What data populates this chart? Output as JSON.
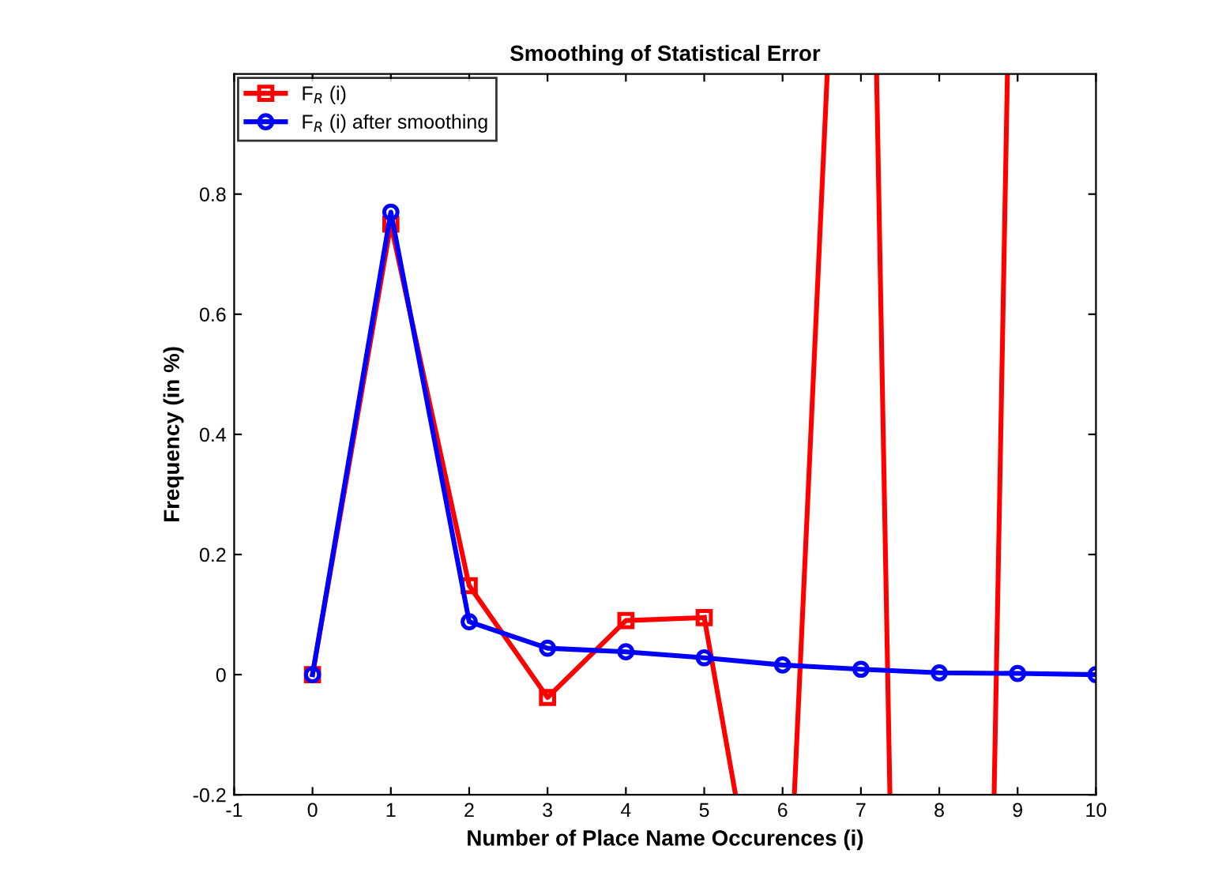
{
  "chart_data": {
    "type": "line",
    "title": "Smoothing of Statistical Error",
    "xlabel": "Number of Place Name Occurences (i)",
    "ylabel": "Frequency (in %)",
    "xlim": [
      -1,
      10
    ],
    "xticks": [
      -1,
      0,
      1,
      2,
      3,
      4,
      5,
      6,
      7,
      8,
      9,
      10
    ],
    "ylim": [
      -0.2,
      1.0
    ],
    "yticks": [
      -0.2,
      0,
      0.2,
      0.4,
      0.6,
      0.8
    ],
    "legend": "top left",
    "grid": false,
    "line_style": "solid",
    "series": [
      {
        "name": "F$_{R}$ (i)",
        "color": "#ff0000",
        "marker": "square",
        "x": [
          0,
          1,
          2,
          3,
          4,
          5
        ],
        "values": [
          0,
          0.75,
          0.148,
          -0.038,
          0.09,
          0.095
        ]
      },
      {
        "color": "#ff0000",
        "marker": "none",
        "x": [
          5,
          5.4,
          null,
          6.15,
          6.57,
          null,
          7.2,
          7.37,
          null,
          8.7,
          8.87
        ],
        "values": [
          0.095,
          -0.2,
          null,
          -0.2,
          1.0,
          null,
          1.0,
          -0.2,
          null,
          -0.2,
          1.0
        ]
      },
      {
        "name": "F$_{R}$ (i) after smoothing",
        "color": "#0000ff",
        "marker": "circle",
        "x": [
          0,
          1,
          2,
          3,
          4,
          5,
          6,
          7,
          8,
          9,
          10
        ],
        "values": [
          0,
          0.77,
          0.088,
          0.044,
          0.038,
          0.028,
          0.016,
          0.009,
          0.003,
          0.002,
          0.0
        ]
      }
    ]
  }
}
